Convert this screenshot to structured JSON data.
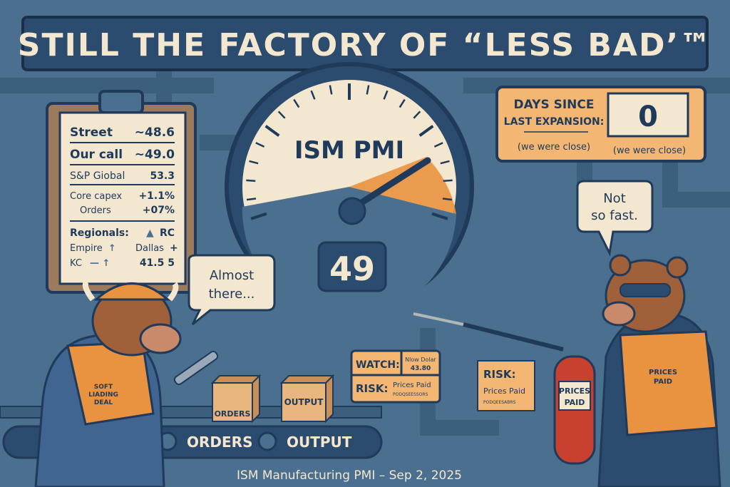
{
  "title": "STILL THE FACTORY OF “LESS BAD’™",
  "caption": "ISM Manufacturing PMI – Sep 2, 2025",
  "clipboard": {
    "rows": [
      {
        "label": "Street",
        "value": "~48.6"
      },
      {
        "label": "Our call",
        "value": "~49.0"
      },
      {
        "label": "S&P Giobal",
        "value": "53.3"
      },
      {
        "label": "Core capex",
        "value": "+1.1%"
      },
      {
        "label": "Orders",
        "value": "+07%"
      }
    ],
    "regionals_label": "Regionals:",
    "regionals_rc": "RC",
    "empire": "Empire",
    "dallas": "Dallas",
    "kc": "KC",
    "kc_value": "41.5 5"
  },
  "gauge": {
    "label": "ISM PMI",
    "value": "49",
    "reading": 49
  },
  "days_since": {
    "line1": "DAYS SINCE",
    "line2": "LAST EXPANSION:",
    "count": "0",
    "note_left": "(we were close)",
    "note_right": "(we were close)"
  },
  "bull": {
    "speech": [
      "Almost",
      "there..."
    ],
    "vest": [
      "SOFT",
      "LIADING",
      "DEAL"
    ]
  },
  "bear": {
    "speech": [
      "Not",
      "so fast."
    ],
    "vest": [
      "PRICES",
      "PAID"
    ]
  },
  "extinguisher": [
    "PRICES",
    "PAID"
  ],
  "watch_panel": {
    "watch_label": "WATCH:",
    "watch_value_1": "Nlow Dolar",
    "watch_value_2": "43.80",
    "risk_label": "RISK:",
    "risk_value": "Prices Paid",
    "risk_sub": "PODQSEESSORS"
  },
  "risk_note": {
    "label": "RISK:",
    "value": "Prices Paid",
    "sub": "PODQEESABRS"
  },
  "boxes": {
    "orders": "ORDERS",
    "output": "OUTPUT"
  },
  "conveyor": {
    "orders": "ORDERS",
    "output": "OUTPUT"
  },
  "colors": {
    "background": "#4b6f8f",
    "navy": "#1f3a5a",
    "cream": "#f3e7cf",
    "orange": "#e9923f",
    "panel": "#f4b773"
  }
}
